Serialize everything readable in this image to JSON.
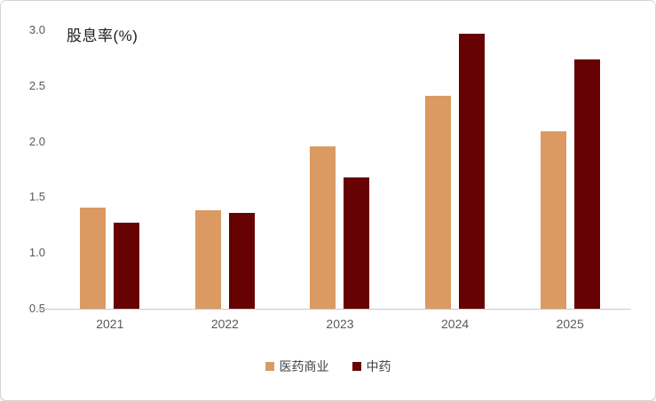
{
  "chart_data": {
    "type": "bar",
    "title": "股息率(%)",
    "categories": [
      "2021",
      "2022",
      "2023",
      "2024",
      "2025"
    ],
    "series": [
      {
        "name": "医药商业",
        "color": "#DB9A62",
        "values": [
          1.41,
          1.38,
          1.96,
          2.41,
          2.09
        ]
      },
      {
        "name": "中药",
        "color": "#660202",
        "values": [
          1.27,
          1.36,
          1.68,
          2.97,
          2.74
        ]
      }
    ],
    "xlabel": "",
    "ylabel": "",
    "ylim": [
      0.5,
      3.0
    ],
    "ytick_labels": [
      "3.0",
      "2.5",
      "2.0",
      "1.5",
      "1.0",
      "0.5"
    ],
    "grid": false,
    "legend_position": "bottom"
  },
  "colors": {
    "axis_line": "#c9c9c9",
    "tick_text": "#595959",
    "legend_text": "#404040",
    "frame_border": "#d5d5d5"
  }
}
